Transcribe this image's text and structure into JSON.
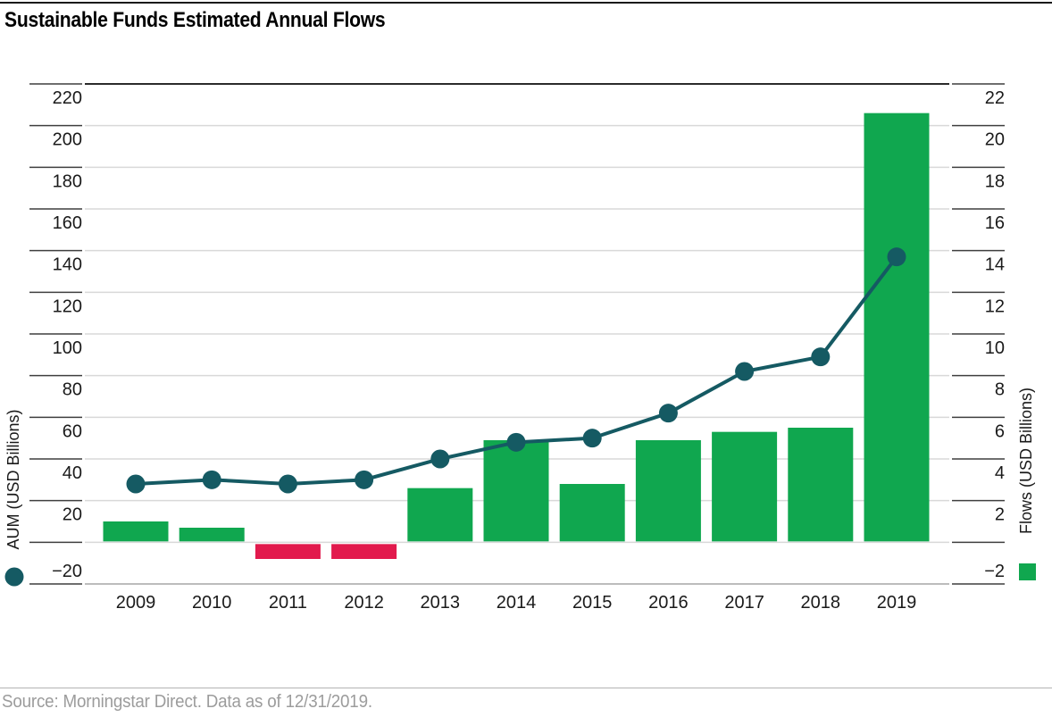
{
  "title": "Sustainable Funds Estimated Annual Flows",
  "footer": {
    "source": "Source: Morningstar Direct. Data as of 12/31/2019."
  },
  "colors": {
    "positive_bar": "#10A74F",
    "negative_bar": "#E21A4D",
    "line": "#155A63",
    "gridline": "#D9D9D9",
    "grid_top": "#2B2B2B",
    "grid_bottom": "#A6A6A6",
    "tick_line": "#3F3F3F",
    "tick_text": "#1A1A1A"
  },
  "chart_data": {
    "type": "bar",
    "title": "Sustainable Funds Estimated Annual Flows",
    "categories": [
      "2009",
      "2010",
      "2011",
      "2012",
      "2013",
      "2014",
      "2015",
      "2016",
      "2017",
      "2018",
      "2019"
    ],
    "series": [
      {
        "name": "Flows (USD Billions)",
        "type": "bar",
        "axis": "right",
        "values": [
          1.0,
          0.7,
          -0.8,
          -0.8,
          2.6,
          4.9,
          2.8,
          4.9,
          5.3,
          5.5,
          20.6
        ]
      },
      {
        "name": "AUM (USD Billions)",
        "type": "line",
        "axis": "left",
        "values": [
          28,
          30,
          28,
          30,
          40,
          48,
          50,
          62,
          82,
          89,
          137
        ]
      }
    ],
    "left_axis": {
      "label": "AUM (USD Billions)",
      "min": -20,
      "max": 220,
      "step": 20,
      "zero_label_hidden": true
    },
    "right_axis": {
      "label": "Flows (USD Billions)",
      "min": -2,
      "max": 22,
      "step": 2,
      "zero_label_hidden": true
    },
    "grid": true,
    "legend": {
      "aum_marker": "teal-circle",
      "flows_marker": "green-square"
    }
  }
}
